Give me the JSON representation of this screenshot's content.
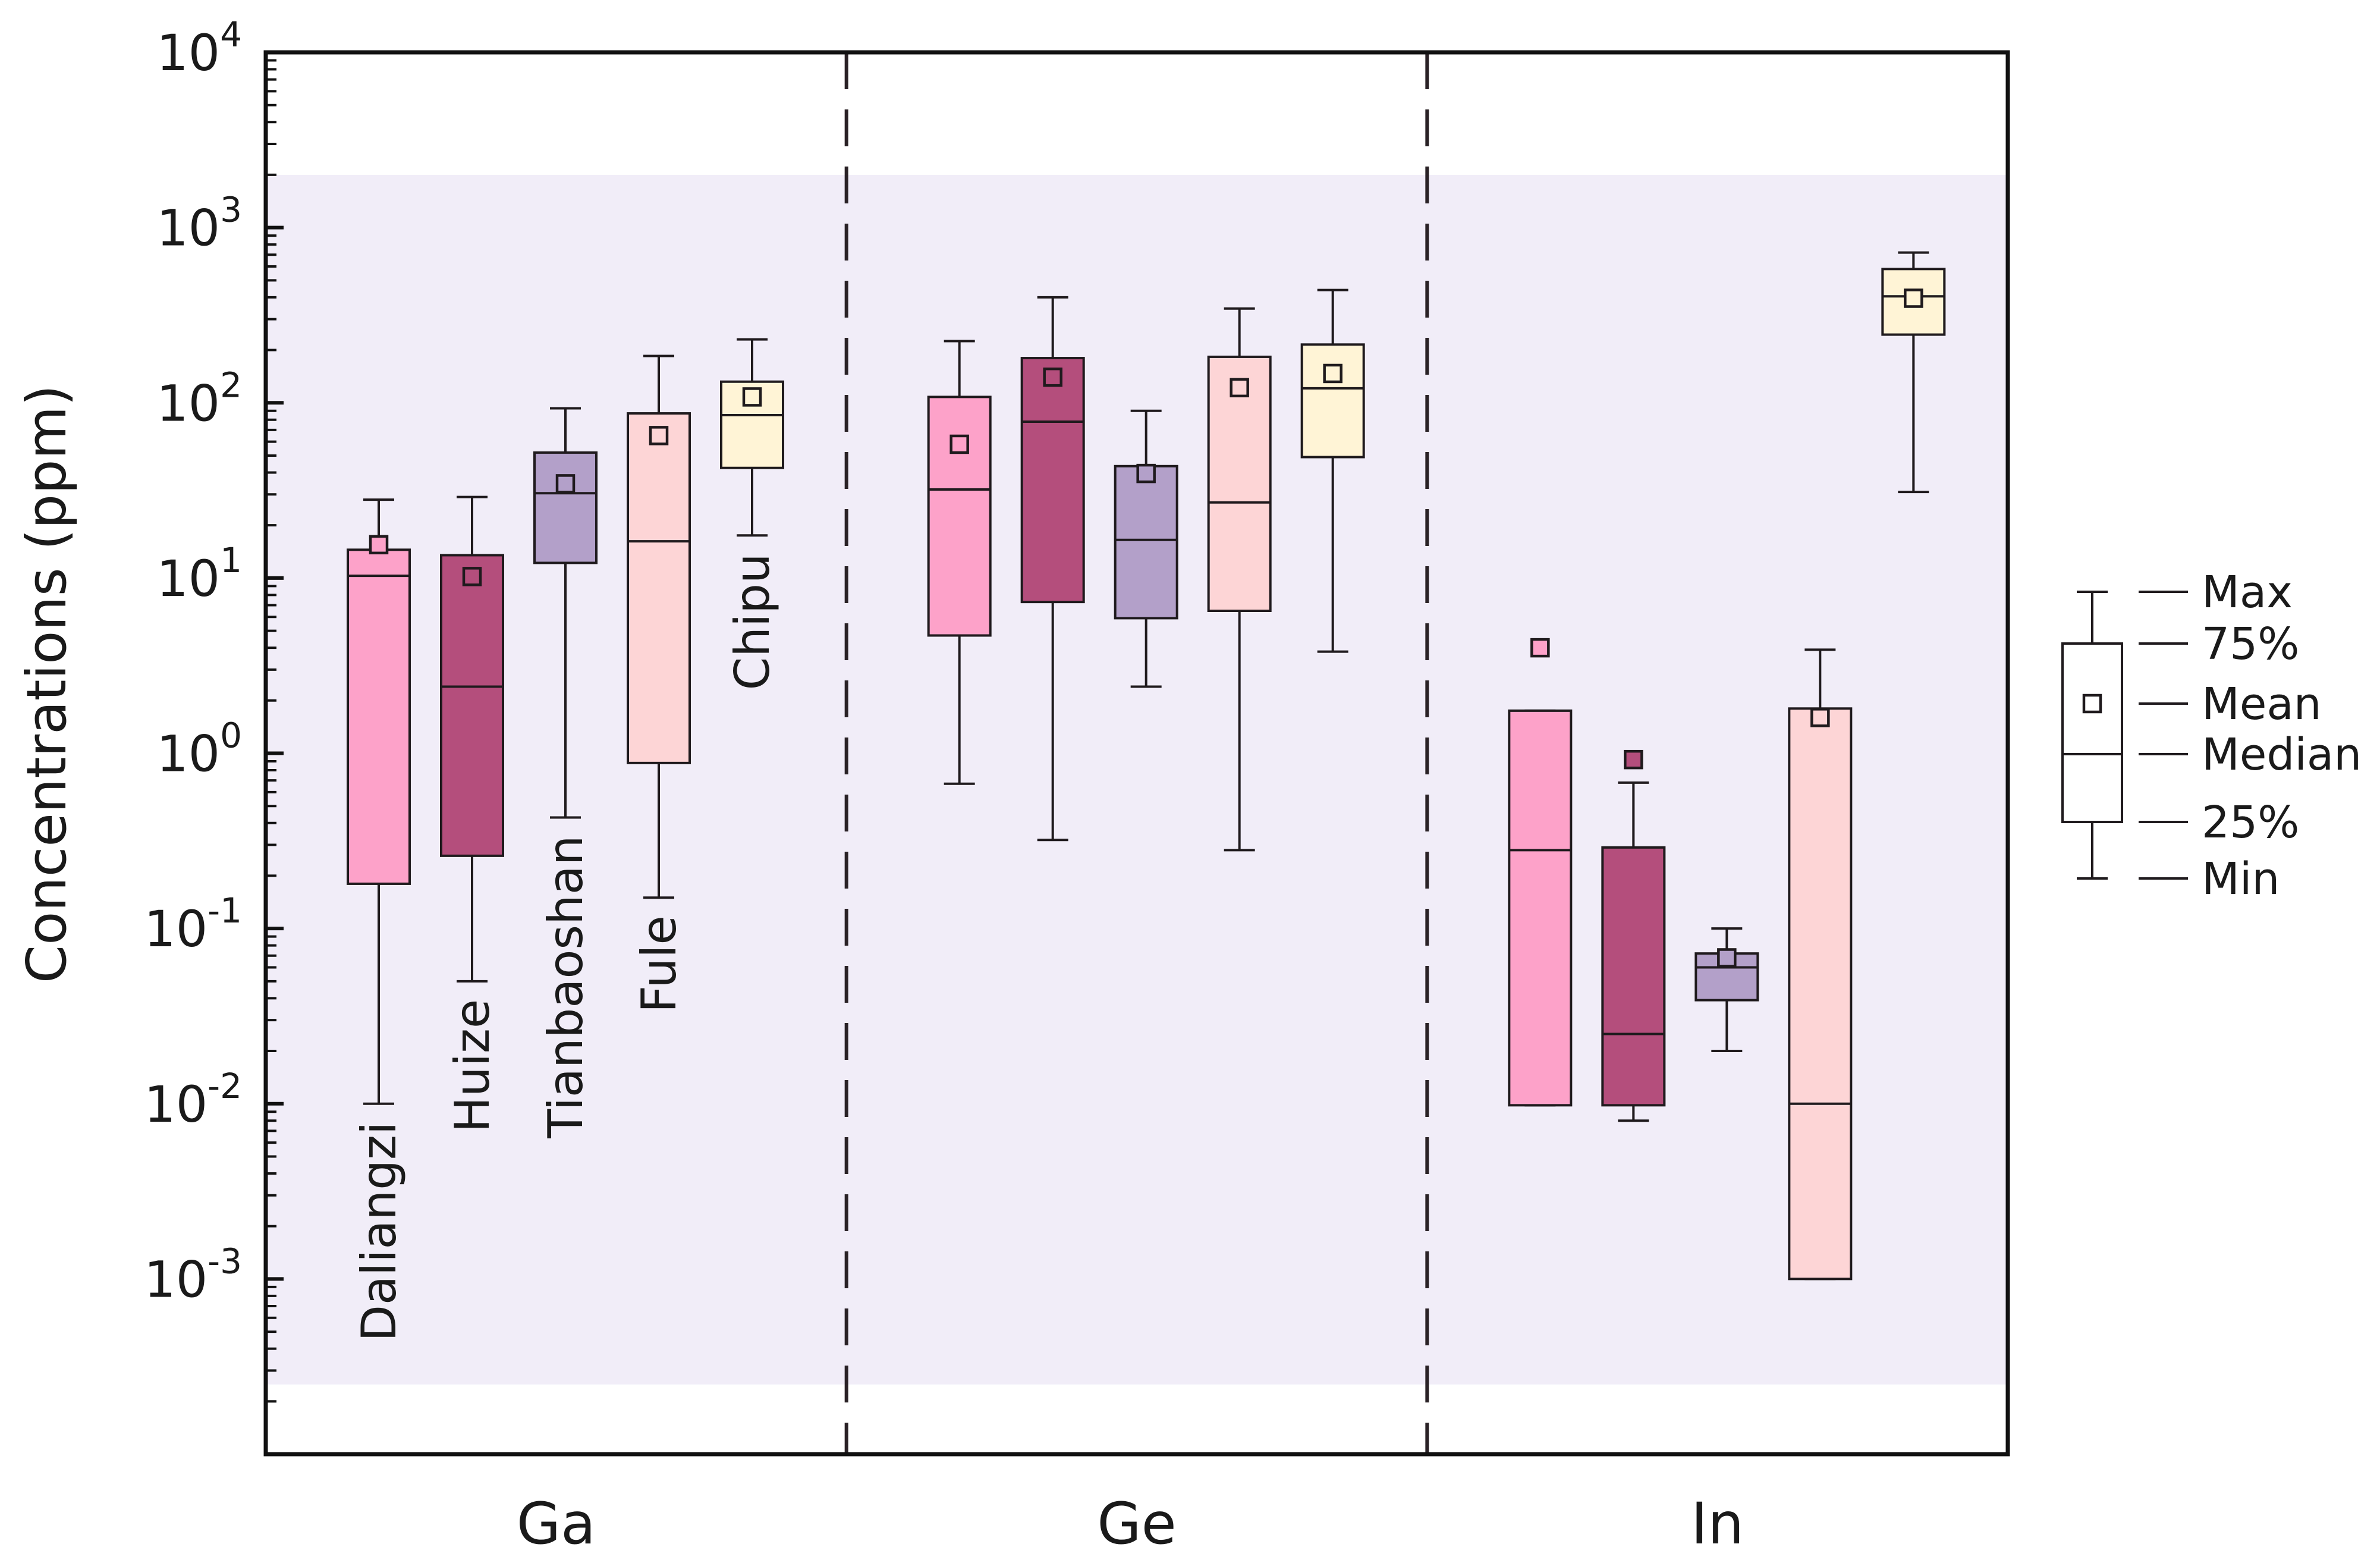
{
  "chart_data": {
    "type": "box",
    "ylabel": "Concentrations (ppm)",
    "yscale": "log",
    "ylim": [
      0.0001,
      10000
    ],
    "yticks": [
      {
        "value": 0.001,
        "base": "10",
        "exp": "-3"
      },
      {
        "value": 0.01,
        "base": "10",
        "exp": "-2"
      },
      {
        "value": 0.1,
        "base": "10",
        "exp": "-1"
      },
      {
        "value": 1,
        "base": "10",
        "exp": "0"
      },
      {
        "value": 10,
        "base": "10",
        "exp": "1"
      },
      {
        "value": 100,
        "base": "10",
        "exp": "2"
      },
      {
        "value": 1000,
        "base": "10",
        "exp": "3"
      },
      {
        "value": 10000,
        "base": "10",
        "exp": "4"
      }
    ],
    "shaded_band": {
      "low": 0.00025,
      "high": 2000,
      "color": "#f1edf8"
    },
    "groups": [
      "Ga",
      "Ge",
      "In"
    ],
    "series": [
      {
        "name": "Daliangzi",
        "color": "#fda2c9"
      },
      {
        "name": "Huize",
        "color": "#b44e7c"
      },
      {
        "name": "Tianbaoshan",
        "color": "#b3a0c9"
      },
      {
        "name": "Fule",
        "color": "#fdd5d6"
      },
      {
        "name": "Chipu",
        "color": "#fff4d6"
      }
    ],
    "boxes": [
      {
        "group": "Ga",
        "series": "Daliangzi",
        "min": 0.01,
        "q1": 0.18,
        "median": 10.3,
        "q3": 14.5,
        "max": 28,
        "mean": 15.5
      },
      {
        "group": "Ga",
        "series": "Huize",
        "min": 0.05,
        "q1": 0.26,
        "median": 2.4,
        "q3": 13.5,
        "max": 29,
        "mean": 10.2
      },
      {
        "group": "Ga",
        "series": "Tianbaoshan",
        "min": 0.43,
        "q1": 12.2,
        "median": 30.5,
        "q3": 52,
        "max": 93,
        "mean": 34.5
      },
      {
        "group": "Ga",
        "series": "Fule",
        "min": 0.15,
        "q1": 0.88,
        "median": 16.2,
        "q3": 87,
        "max": 185,
        "mean": 65
      },
      {
        "group": "Ga",
        "series": "Chipu",
        "min": 17.5,
        "q1": 42.5,
        "median": 85,
        "q3": 132,
        "max": 230,
        "mean": 108
      },
      {
        "group": "Ge",
        "series": "Daliangzi",
        "min": 0.67,
        "q1": 4.7,
        "median": 32,
        "q3": 108,
        "max": 225,
        "mean": 58
      },
      {
        "group": "Ge",
        "series": "Huize",
        "min": 0.32,
        "q1": 7.3,
        "median": 78,
        "q3": 180,
        "max": 400,
        "mean": 140
      },
      {
        "group": "Ge",
        "series": "Tianbaoshan",
        "min": 2.4,
        "q1": 5.9,
        "median": 16.5,
        "q3": 43.5,
        "max": 90,
        "mean": 39.5
      },
      {
        "group": "Ge",
        "series": "Fule",
        "min": 0.28,
        "q1": 6.5,
        "median": 27,
        "q3": 183,
        "max": 345,
        "mean": 122
      },
      {
        "group": "Ge",
        "series": "Chipu",
        "min": 3.8,
        "q1": 49,
        "median": 121,
        "q3": 215,
        "max": 440,
        "mean": 147
      },
      {
        "group": "In",
        "series": "Daliangzi",
        "min": 0.0098,
        "q1": 0.0098,
        "median": 0.28,
        "q3": 1.75,
        "max": 1.75,
        "mean": 4.0
      },
      {
        "group": "In",
        "series": "Huize",
        "min": 0.008,
        "q1": 0.0098,
        "median": 0.025,
        "q3": 0.29,
        "max": 0.68,
        "mean": 0.92
      },
      {
        "group": "In",
        "series": "Tianbaoshan",
        "min": 0.02,
        "q1": 0.039,
        "median": 0.06,
        "q3": 0.072,
        "max": 0.1,
        "mean": 0.068
      },
      {
        "group": "In",
        "series": "Fule",
        "min": 0.001,
        "q1": 0.001,
        "median": 0.01,
        "q3": 1.8,
        "max": 3.9,
        "mean": 1.6
      },
      {
        "group": "In",
        "series": "Chipu",
        "min": 31,
        "q1": 245,
        "median": 405,
        "q3": 580,
        "max": 720,
        "mean": 395
      }
    ],
    "legend": {
      "placement": "right",
      "items": [
        "Max",
        "75%",
        "Mean",
        "Median",
        "25%",
        "Min"
      ]
    }
  }
}
